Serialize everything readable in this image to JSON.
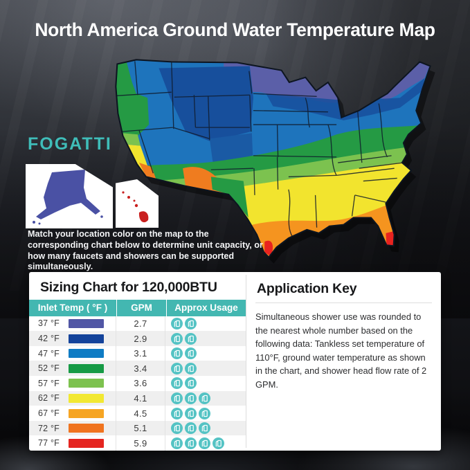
{
  "page": {
    "title": "North America Ground Water Temperature Map"
  },
  "brand": {
    "logo_text": "FOGATTI",
    "accent_color": "#3fbdb9"
  },
  "intro": {
    "text": "Match your location color on the map to the corresponding chart below to determine unit capacity, or how many faucets and showers can be supported simultaneously."
  },
  "map": {
    "name": "US ground water temperature zones map",
    "band_colors": {
      "coldest_violet": "#5b5fa8",
      "cold_darkblue": "#174f9c",
      "cool_blue": "#1e74bc",
      "mild_green": "#259a44",
      "warm_lightgreen": "#7cc24f",
      "warmer_yellow": "#f2e42e",
      "hot_orange": "#f5941f",
      "hotter_darkorange": "#ef7c1f",
      "hottest_red": "#e8231f"
    },
    "alaska_color": "#4a51a4",
    "hawaii_color": "#c9201f"
  },
  "sizing_chart": {
    "title": "Sizing Chart for 120,000BTU",
    "header_color": "#43b7b1",
    "icon_color": "#54c3c4",
    "columns": [
      "Inlet Temp ( °F )",
      "GPM",
      "Approx Usage"
    ],
    "rows": [
      {
        "inlet_temp": "37 °F",
        "bar_color": "#5156a5",
        "gpm": "2.7",
        "showers": 2
      },
      {
        "inlet_temp": "42 °F",
        "bar_color": "#14439b",
        "gpm": "2.9",
        "showers": 2
      },
      {
        "inlet_temp": "47 °F",
        "bar_color": "#0f7cc4",
        "gpm": "3.1",
        "showers": 2
      },
      {
        "inlet_temp": "52 °F",
        "bar_color": "#169a45",
        "gpm": "3.4",
        "showers": 2
      },
      {
        "inlet_temp": "57 °F",
        "bar_color": "#7dc24f",
        "gpm": "3.6",
        "showers": 2
      },
      {
        "inlet_temp": "62 °F",
        "bar_color": "#f2e832",
        "gpm": "4.1",
        "showers": 3
      },
      {
        "inlet_temp": "67 °F",
        "bar_color": "#f6a523",
        "gpm": "4.5",
        "showers": 3
      },
      {
        "inlet_temp": "72 °F",
        "bar_color": "#f0741f",
        "gpm": "5.1",
        "showers": 3
      },
      {
        "inlet_temp": "77 °F",
        "bar_color": "#e52520",
        "gpm": "5.9",
        "showers": 4
      }
    ]
  },
  "application_key": {
    "title": "Application Key",
    "body": "Simultaneous shower use was rounded to the nearest whole number based on the following data: Tankless set temperature of 110°F, ground water temperature as shown in the chart, and shower head flow rate of 2 GPM."
  }
}
